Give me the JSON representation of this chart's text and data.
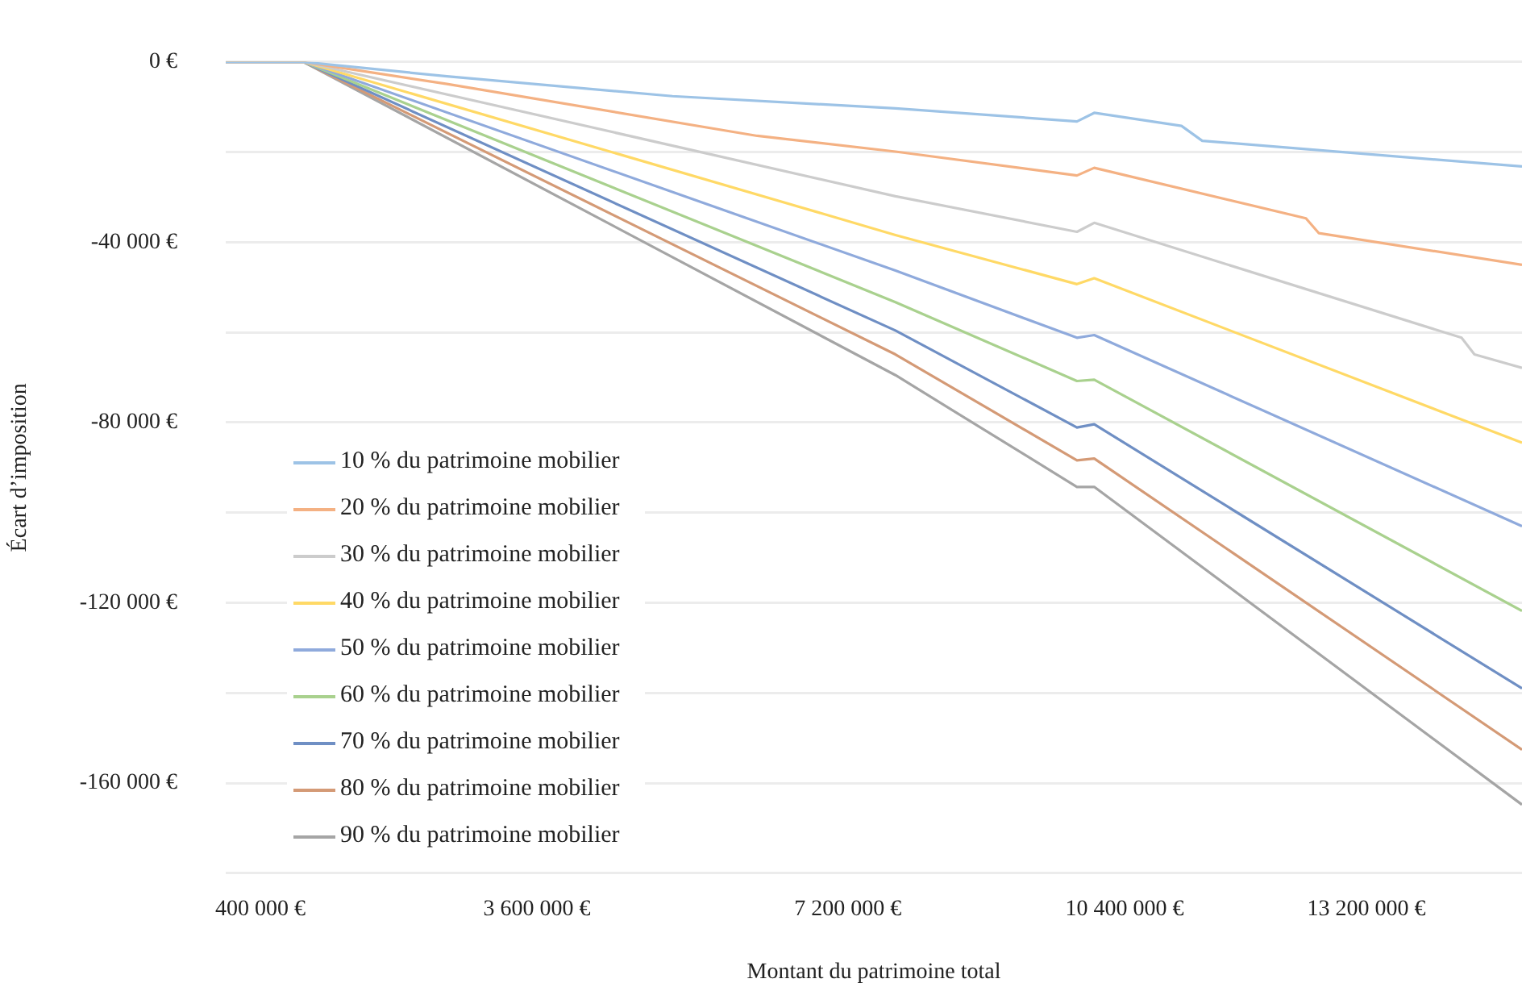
{
  "chart_data": {
    "type": "line",
    "xlabel": "Montant du patrimoine total",
    "ylabel": "Écart d’imposition",
    "xlim": [
      0,
      15000000
    ],
    "xticks": [
      {
        "value": 400000,
        "label": "400 000 €"
      },
      {
        "value": 3600000,
        "label": "3 600 000 €"
      },
      {
        "value": 7200000,
        "label": "7 200 000 €"
      },
      {
        "value": 10400000,
        "label": "10 400 000 €"
      },
      {
        "value": 13200000,
        "label": "13 200 000 €"
      }
    ],
    "ylim": [
      -180000,
      0
    ],
    "yticks": [
      {
        "value": -180000,
        "label": null
      },
      {
        "value": -160000,
        "label": "-160 000 €"
      },
      {
        "value": -140000,
        "label": null
      },
      {
        "value": -120000,
        "label": "-120 000 €"
      },
      {
        "value": -100000,
        "label": null
      },
      {
        "value": -80000,
        "label": "-80 000 €"
      },
      {
        "value": -60000,
        "label": null
      },
      {
        "value": -40000,
        "label": "-40 000 €"
      },
      {
        "value": -20000,
        "label": null
      },
      {
        "value": 0,
        "label": "0 €"
      }
    ],
    "grid": "y",
    "legend": "bottom left",
    "marker": "none",
    "line_style": "solid",
    "series": [
      {
        "name": "10 % du patrimoine mobilier",
        "color": "#9dc3e6",
        "x": [
          0,
          900000,
          2560000,
          5170000,
          7750000,
          9850000,
          10050000,
          11060000,
          11300000,
          15000000
        ],
        "values": [
          0,
          0,
          -3200,
          -7600,
          -10300,
          -13200,
          -11300,
          -14200,
          -17500,
          -23200
        ]
      },
      {
        "name": "20 % du patrimoine mobilier",
        "color": "#f4b183",
        "x": [
          0,
          900000,
          2560000,
          6150000,
          7750000,
          9850000,
          10050000,
          12500000,
          12650000,
          15000000
        ],
        "values": [
          0,
          0,
          -4900,
          -16400,
          -19900,
          -25200,
          -23500,
          -34700,
          -38000,
          -45000
        ]
      },
      {
        "name": "30 % du patrimoine mobilier",
        "color": "#cccccc",
        "x": [
          0,
          900000,
          7750000,
          9850000,
          10050000,
          14300000,
          14450000,
          15000000
        ],
        "values": [
          0,
          0,
          -29800,
          -37700,
          -35700,
          -61200,
          -64900,
          -67900
        ]
      },
      {
        "name": "40 % du patrimoine mobilier",
        "color": "#ffd966",
        "x": [
          0,
          900000,
          7750000,
          9850000,
          10050000,
          15000000
        ],
        "values": [
          0,
          0,
          -38400,
          -49300,
          -48000,
          -84500
        ]
      },
      {
        "name": "50 % du patrimoine mobilier",
        "color": "#8faadc",
        "x": [
          0,
          900000,
          7750000,
          9850000,
          10050000,
          15000000
        ],
        "values": [
          0,
          0,
          -46300,
          -61200,
          -60600,
          -103000
        ]
      },
      {
        "name": "60 % du patrimoine mobilier",
        "color": "#a9d18e",
        "x": [
          0,
          900000,
          7750000,
          9850000,
          10050000,
          15000000
        ],
        "values": [
          0,
          0,
          -53300,
          -70800,
          -70500,
          -121800
        ]
      },
      {
        "name": "70 % du patrimoine mobilier",
        "color": "#6f8fc4",
        "x": [
          0,
          900000,
          7750000,
          9850000,
          10050000,
          15000000
        ],
        "values": [
          0,
          0,
          -59600,
          -81100,
          -80400,
          -139000
        ]
      },
      {
        "name": "80 % du patrimoine mobilier",
        "color": "#d49a76",
        "x": [
          0,
          900000,
          7750000,
          9850000,
          10050000,
          15000000
        ],
        "values": [
          0,
          0,
          -64900,
          -88400,
          -88000,
          -152600
        ]
      },
      {
        "name": "90 % du patrimoine mobilier",
        "color": "#a5a5a5",
        "x": [
          0,
          900000,
          7750000,
          9850000,
          10050000,
          15000000
        ],
        "values": [
          0,
          0,
          -69500,
          -94300,
          -94300,
          -164800
        ]
      }
    ]
  }
}
